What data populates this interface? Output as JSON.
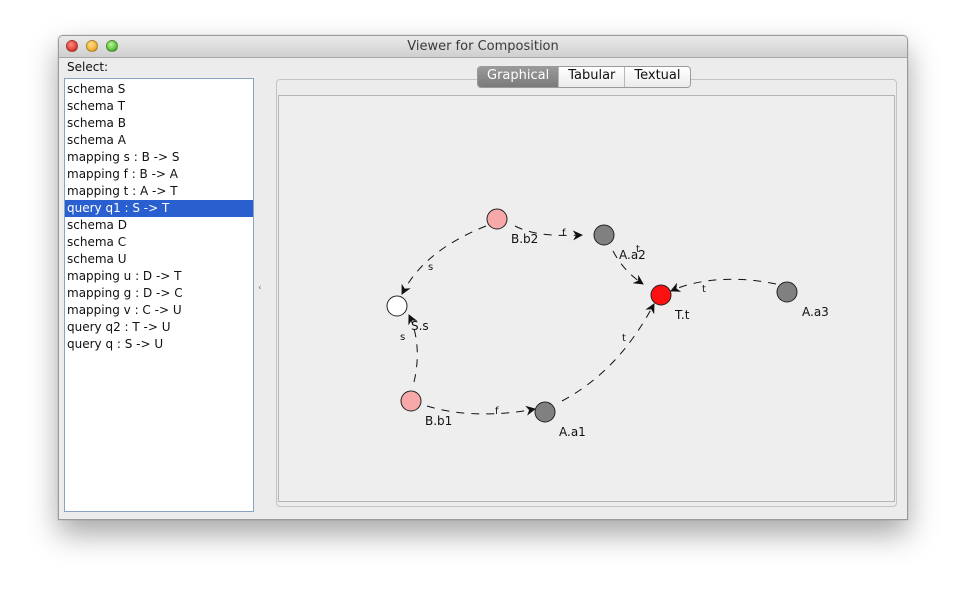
{
  "window": {
    "title": "Viewer for Composition"
  },
  "select_label": "Select:",
  "list": {
    "items": [
      "schema S",
      "schema T",
      "schema B",
      "schema A",
      "mapping s : B -> S",
      "mapping f : B -> A",
      "mapping t : A -> T",
      "query q1 : S -> T",
      "schema D",
      "schema C",
      "schema U",
      "mapping u : D -> T",
      "mapping g : D -> C",
      "mapping v : C -> U",
      "query q2 : T -> U",
      "query q : S -> U"
    ],
    "selected_index": 7
  },
  "tabs": [
    "Graphical",
    "Tabular",
    "Textual"
  ],
  "active_tab": 0,
  "graph": {
    "nodes": {
      "bb2": {
        "label": "B.b2",
        "color": "#f7a8a8"
      },
      "aa2": {
        "label": "A.a2",
        "color": "#808080"
      },
      "ss": {
        "label": "S.s",
        "color": "#ffffff"
      },
      "tt": {
        "label": "T.t",
        "color": "#ff1010"
      },
      "aa3": {
        "label": "A.a3",
        "color": "#808080"
      },
      "bb1": {
        "label": "B.b1",
        "color": "#f7a8a8"
      },
      "aa1": {
        "label": "A.a1",
        "color": "#808080"
      }
    },
    "edges": {
      "bb2_ss": "s",
      "bb2_aa2": "f",
      "aa2_tt": "t",
      "aa3_tt": "t",
      "bb1_ss": "s",
      "bb1_aa1": "f",
      "aa1_tt": "t"
    }
  }
}
